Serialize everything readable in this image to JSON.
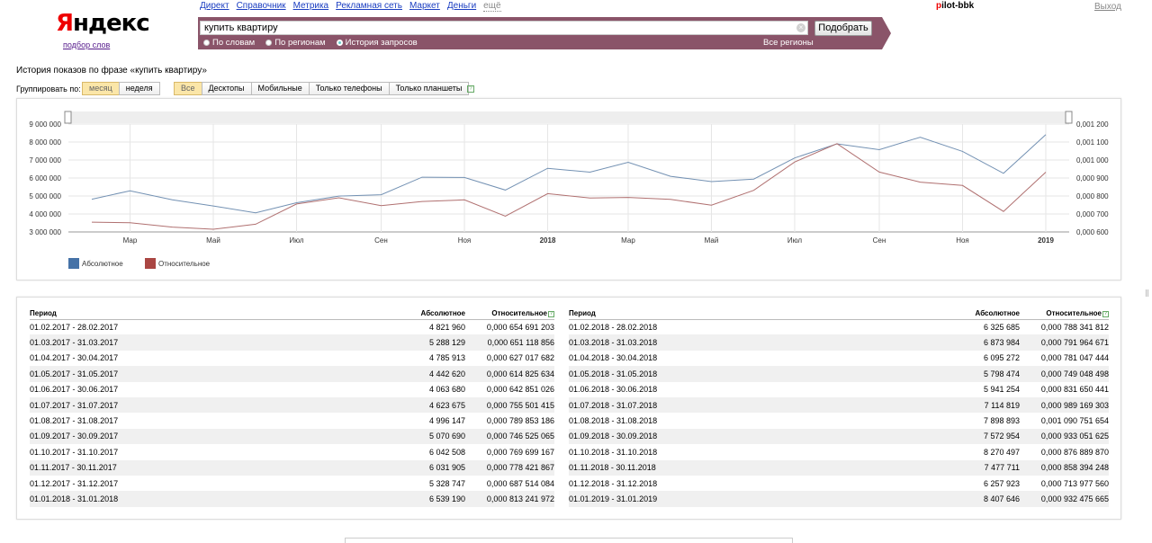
{
  "logo": {
    "brand_first": "Я",
    "brand_rest": "ндекс",
    "sub": "подбор слов"
  },
  "topnav": [
    "Директ",
    "Справочник",
    "Метрика",
    "Рекламная сеть",
    "Маркет",
    "Деньги",
    "ещё"
  ],
  "user": {
    "first": "p",
    "rest": "ilot-bbk",
    "logout": "Выход"
  },
  "search": {
    "value": "купить квартиру",
    "button": "Подобрать",
    "regions": "Все регионы",
    "modes": [
      {
        "label": "По словам",
        "checked": false
      },
      {
        "label": "По регионам",
        "checked": false
      },
      {
        "label": "История запросов",
        "checked": true
      }
    ]
  },
  "page": {
    "title": "История показов по фразе «купить квартиру»",
    "group_label": "Группировать по:"
  },
  "group_buttons": [
    {
      "label": "месяц",
      "active": true
    },
    {
      "label": "неделя",
      "active": false
    }
  ],
  "device_buttons": [
    {
      "label": "Все",
      "active": true
    },
    {
      "label": "Десктопы",
      "active": false
    },
    {
      "label": "Мобильные",
      "active": false
    },
    {
      "label": "Только телефоны",
      "active": false
    },
    {
      "label": "Только планшеты",
      "active": false
    }
  ],
  "help_glyph": "?",
  "chart_data": {
    "type": "line",
    "x": [
      "01.02.2017",
      "01.03.2017",
      "01.04.2017",
      "01.05.2017",
      "01.06.2017",
      "01.07.2017",
      "01.08.2017",
      "01.09.2017",
      "01.10.2017",
      "01.11.2017",
      "01.12.2017",
      "01.01.2018",
      "01.02.2018",
      "01.03.2018",
      "01.04.2018",
      "01.05.2018",
      "01.06.2018",
      "01.07.2018",
      "01.08.2018",
      "01.09.2018",
      "01.10.2018",
      "01.11.2018",
      "01.12.2018",
      "01.01.2019"
    ],
    "x_tick_labels": [
      "Мар",
      "Май",
      "Июл",
      "Сен",
      "Ноя",
      "2018",
      "Мар",
      "Май",
      "Июл",
      "Сен",
      "Ноя",
      "2019"
    ],
    "x_tick_dates": [
      "01.03.2017",
      "01.05.2017",
      "01.07.2017",
      "01.09.2017",
      "01.11.2017",
      "01.01.2018",
      "01.03.2018",
      "01.05.2018",
      "01.07.2018",
      "01.09.2018",
      "01.11.2018",
      "01.01.2019"
    ],
    "x_tick_bold": [
      false,
      false,
      false,
      false,
      false,
      true,
      false,
      false,
      false,
      false,
      false,
      true
    ],
    "y_left_ticks": [
      "9 000 000",
      "8 000 000",
      "7 000 000",
      "6 000 000",
      "5 000 000",
      "4 000 000",
      "3 000 000"
    ],
    "y_left_range": [
      3000000,
      9000000
    ],
    "y_right_ticks": [
      "0,001 200",
      "0,001 100",
      "0,001 000",
      "0,000 900",
      "0,000 800",
      "0,000 700",
      "0,000 600"
    ],
    "y_right_range": [
      0.0006,
      0.0012
    ],
    "grid": true,
    "legend_position": "bottom-left",
    "series": [
      {
        "name": "Абсолютное",
        "axis": "left",
        "color": "#7391b3",
        "legend_color": "#4572a7",
        "values": [
          4821960,
          5288129,
          4785913,
          4442620,
          4063680,
          4623675,
          4996147,
          5070690,
          6042508,
          6031905,
          5328747,
          6539190,
          6325685,
          6873984,
          6095272,
          5798474,
          5941254,
          7114819,
          7898893,
          7572954,
          8270497,
          7477711,
          6257923,
          8407646
        ]
      },
      {
        "name": "Относительное",
        "axis": "right",
        "color": "#b07070",
        "legend_color": "#aa4643",
        "values": [
          0.000654691203,
          0.000651118856,
          0.000627017682,
          0.000614825634,
          0.000642851026,
          0.000755501415,
          0.000789853186,
          0.000746525065,
          0.000769699167,
          0.000778421867,
          0.000687514084,
          0.000813241972,
          0.000788341812,
          0.000791964671,
          0.000781047444,
          0.000749048498,
          0.000831650441,
          0.000989169303,
          0.001090751654,
          0.000933051625,
          0.00087688987,
          0.000858394248,
          0.00071397756,
          0.000932475665
        ]
      }
    ]
  },
  "table": {
    "headers": {
      "period": "Период",
      "absolute": "Абсолютное",
      "relative": "Относительное"
    },
    "left": [
      [
        "01.02.2017 - 28.02.2017",
        "4 821 960",
        "0,000 654 691 203"
      ],
      [
        "01.03.2017 - 31.03.2017",
        "5 288 129",
        "0,000 651 118 856"
      ],
      [
        "01.04.2017 - 30.04.2017",
        "4 785 913",
        "0,000 627 017 682"
      ],
      [
        "01.05.2017 - 31.05.2017",
        "4 442 620",
        "0,000 614 825 634"
      ],
      [
        "01.06.2017 - 30.06.2017",
        "4 063 680",
        "0,000 642 851 026"
      ],
      [
        "01.07.2017 - 31.07.2017",
        "4 623 675",
        "0,000 755 501 415"
      ],
      [
        "01.08.2017 - 31.08.2017",
        "4 996 147",
        "0,000 789 853 186"
      ],
      [
        "01.09.2017 - 30.09.2017",
        "5 070 690",
        "0,000 746 525 065"
      ],
      [
        "01.10.2017 - 31.10.2017",
        "6 042 508",
        "0,000 769 699 167"
      ],
      [
        "01.11.2017 - 30.11.2017",
        "6 031 905",
        "0,000 778 421 867"
      ],
      [
        "01.12.2017 - 31.12.2017",
        "5 328 747",
        "0,000 687 514 084"
      ],
      [
        "01.01.2018 - 31.01.2018",
        "6 539 190",
        "0,000 813 241 972"
      ]
    ],
    "right": [
      [
        "01.02.2018 - 28.02.2018",
        "6 325 685",
        "0,000 788 341 812"
      ],
      [
        "01.03.2018 - 31.03.2018",
        "6 873 984",
        "0,000 791 964 671"
      ],
      [
        "01.04.2018 - 30.04.2018",
        "6 095 272",
        "0,000 781 047 444"
      ],
      [
        "01.05.2018 - 31.05.2018",
        "5 798 474",
        "0,000 749 048 498"
      ],
      [
        "01.06.2018 - 30.06.2018",
        "5 941 254",
        "0,000 831 650 441"
      ],
      [
        "01.07.2018 - 31.07.2018",
        "7 114 819",
        "0,000 989 169 303"
      ],
      [
        "01.08.2018 - 31.08.2018",
        "7 898 893",
        "0,001 090 751 654"
      ],
      [
        "01.09.2018 - 30.09.2018",
        "7 572 954",
        "0,000 933 051 625"
      ],
      [
        "01.10.2018 - 31.10.2018",
        "8 270 497",
        "0,000 876 889 870"
      ],
      [
        "01.11.2018 - 30.11.2018",
        "7 477 711",
        "0,000 858 394 248"
      ],
      [
        "01.12.2018 - 31.12.2018",
        "6 257 923",
        "0,000 713 977 560"
      ],
      [
        "01.01.2019 - 31.01.2019",
        "8 407 646",
        "0,000 932 475 665"
      ]
    ]
  }
}
